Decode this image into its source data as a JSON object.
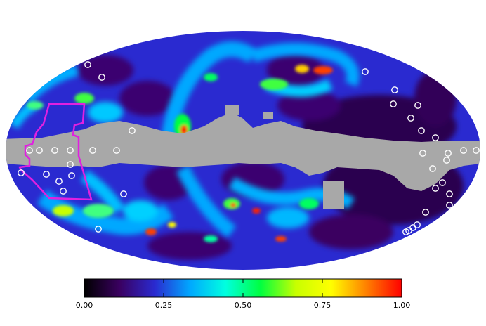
{
  "projection": "mollweide",
  "colormap": {
    "name": "rainbow",
    "stops": [
      "#000000",
      "#3a0060",
      "#2a2ad0",
      "#00a8ff",
      "#00ffe0",
      "#00ff40",
      "#c8ff00",
      "#ffff00",
      "#ff8000",
      "#ff0000"
    ]
  },
  "colors": {
    "masked_region": "#a8a8a8",
    "outline": "#e020e0",
    "markers": "#ffffff",
    "background": "#ffffff"
  },
  "colorbar": {
    "min": 0.0,
    "max": 1.0,
    "ticks": [
      "0.00",
      "0.25",
      "0.50",
      "0.75",
      "1.00"
    ]
  }
}
